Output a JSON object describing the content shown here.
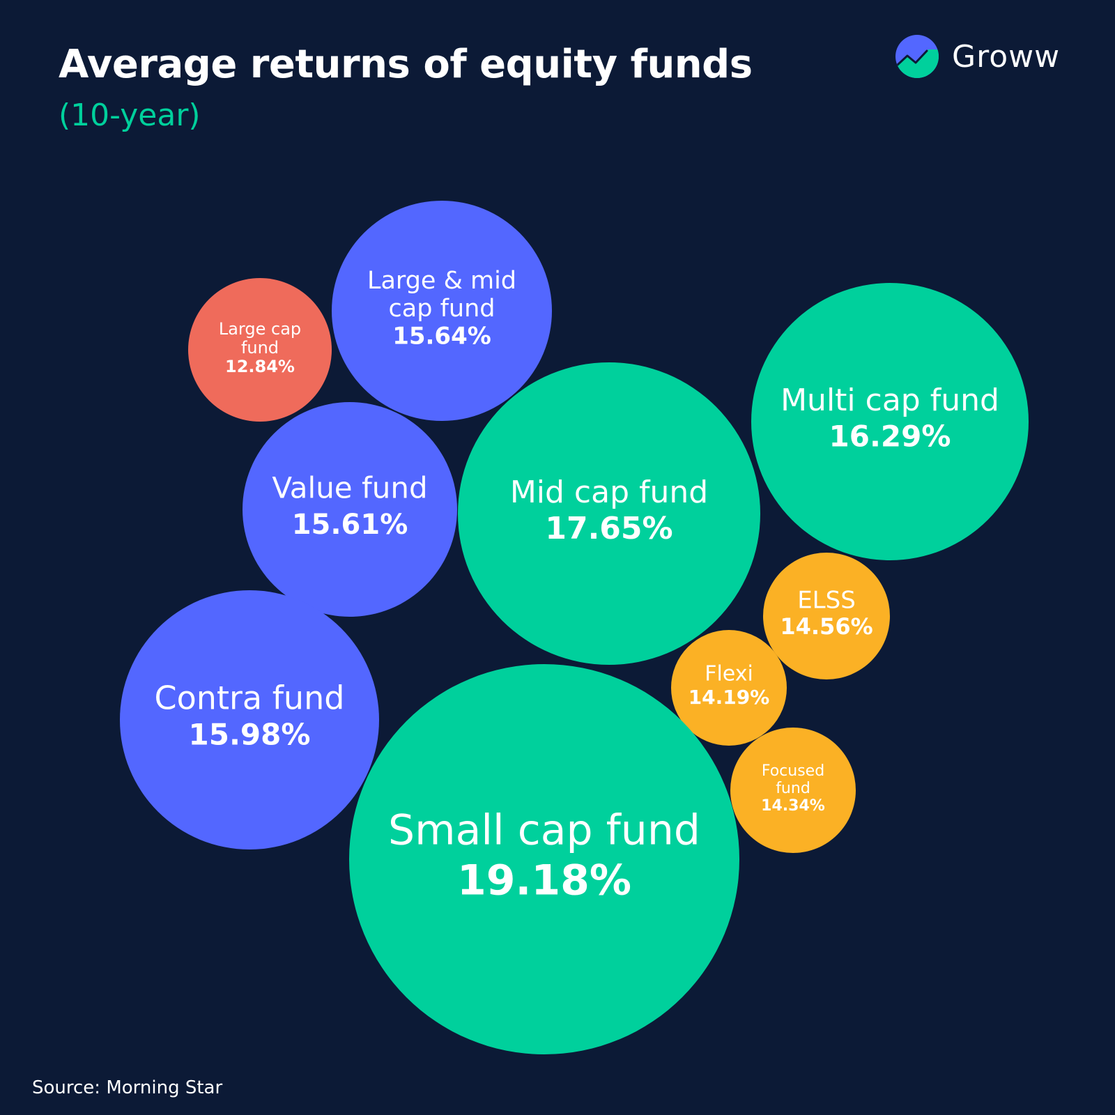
{
  "header": {
    "title": "Average returns of equity funds",
    "subtitle": "(10-year)"
  },
  "brand": {
    "name": "Groww",
    "icon": "groww-logo-icon",
    "colors": {
      "top": "#5367ff",
      "bottom": "#00d09c"
    }
  },
  "footer": {
    "source": "Source: Morning Star"
  },
  "chart_data": {
    "type": "bubble",
    "title": "Average returns of equity funds",
    "subtitle": "(10-year)",
    "unit": "%",
    "colors": {
      "background": "#0c1a36",
      "blue": "#5367ff",
      "green": "#00d09c",
      "red": "#ef6b5b",
      "yellow": "#fbb125"
    },
    "points": [
      {
        "label": [
          "Large cap",
          "fund"
        ],
        "value": 12.84,
        "display": "12.84%",
        "color": "red"
      },
      {
        "label": [
          "Large & mid",
          "cap fund"
        ],
        "value": 15.64,
        "display": "15.64%",
        "color": "blue"
      },
      {
        "label": [
          "Value fund"
        ],
        "value": 15.61,
        "display": "15.61%",
        "color": "blue"
      },
      {
        "label": [
          "Mid cap fund"
        ],
        "value": 17.65,
        "display": "17.65%",
        "color": "green"
      },
      {
        "label": [
          "Multi cap fund"
        ],
        "value": 16.29,
        "display": "16.29%",
        "color": "green"
      },
      {
        "label": [
          "Contra fund"
        ],
        "value": 15.98,
        "display": "15.98%",
        "color": "blue"
      },
      {
        "label": [
          "ELSS"
        ],
        "value": 14.56,
        "display": "14.56%",
        "color": "yellow"
      },
      {
        "label": [
          "Flexi"
        ],
        "value": 14.19,
        "display": "14.19%",
        "color": "yellow"
      },
      {
        "label": [
          "Focused",
          "fund"
        ],
        "value": 14.34,
        "display": "14.34%",
        "color": "yellow"
      },
      {
        "label": [
          "Small cap fund"
        ],
        "value": 19.18,
        "display": "19.18%",
        "color": "green"
      }
    ]
  }
}
